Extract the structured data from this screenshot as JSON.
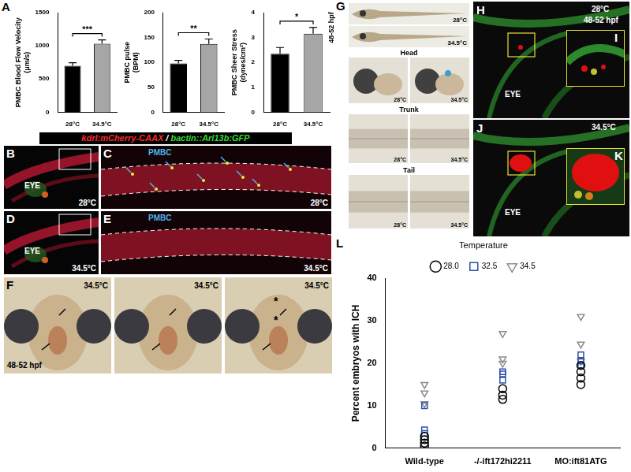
{
  "chart_data": [
    {
      "panel": "A",
      "type": "bar",
      "ylabel": [
        "PMBC Blood Flow Velocity",
        "(μm/s)"
      ],
      "categories": [
        "28°C",
        "34.5°C"
      ],
      "values": [
        700,
        1030
      ],
      "errors": [
        45,
        60
      ],
      "colors": [
        "#000000",
        "#a6a6a6"
      ],
      "significance": "***",
      "ylim": [
        0,
        1500
      ],
      "yticks": [
        0,
        500,
        1000,
        1500
      ],
      "grid": false
    },
    {
      "type": "bar",
      "ylabel": [
        "PMBC pulse",
        "(BPM)"
      ],
      "categories": [
        "28°C",
        "34.5°C"
      ],
      "values": [
        98,
        137
      ],
      "errors": [
        6,
        10
      ],
      "colors": [
        "#000000",
        "#a6a6a6"
      ],
      "significance": "**",
      "ylim": [
        0,
        200
      ],
      "yticks": [
        0,
        50,
        100,
        150,
        200
      ],
      "grid": false
    },
    {
      "type": "bar",
      "ylabel": [
        "PMBC Sheer Stress",
        "(dynes/cm²)"
      ],
      "categories": [
        "28°C",
        "34.5°C"
      ],
      "values": [
        2.35,
        3.15
      ],
      "errors": [
        0.25,
        0.25
      ],
      "colors": [
        "#000000",
        "#a6a6a6"
      ],
      "significance": "*",
      "ylim": [
        0,
        4
      ],
      "yticks": [
        0,
        1,
        2,
        3,
        4
      ],
      "grid": false
    },
    {
      "panel": "L",
      "type": "scatter",
      "ylabel": "Percent embryos with ICH",
      "categories": [
        "Wild-type",
        "-/-ift172hi2211",
        "MO:ift81ATG"
      ],
      "legend": "top",
      "legend_title": "Temperature",
      "grid": false,
      "ylim": [
        0,
        40
      ],
      "yticks": [
        0,
        10,
        20,
        30,
        40
      ],
      "series": [
        {
          "name": "28.0",
          "color": "#000000",
          "marker": "circle",
          "values": [
            [
              0.5,
              1.2,
              2,
              2.8
            ],
            [
              11.5,
              12.5,
              14
            ],
            [
              15,
              16.5,
              18,
              19.5
            ]
          ]
        },
        {
          "name": "32.5",
          "color": "#2e4fa8",
          "marker": "square",
          "values": [
            [
              3.5,
              4.3,
              10
            ],
            [
              16,
              17.5,
              18
            ],
            [
              19.5,
              20.5,
              22
            ]
          ]
        },
        {
          "name": "34.5",
          "color": "#8c8c8c",
          "marker": "triangle_down",
          "values": [
            [
              10.5,
              13,
              15
            ],
            [
              20,
              21,
              27
            ],
            [
              20.5,
              24.5,
              31
            ]
          ]
        }
      ]
    }
  ],
  "header": [
    {
      "text": "kdrl:mCherry-CAAX",
      "color": "#ff2a2a"
    },
    {
      "text": " / ",
      "color": "#ffffff"
    },
    {
      "text": "bactin::Arl13b:GFP",
      "color": "#33dd33"
    }
  ],
  "panels": [
    {
      "letter": "B",
      "eye": "EYE",
      "temperature": "28°C"
    },
    {
      "letter": "C",
      "vessel": "PMBC",
      "temperature": "28°C"
    },
    {
      "letter": "D",
      "eye": "EYE",
      "temperature": "34.5°C"
    },
    {
      "letter": "E",
      "vessel": "PMBC",
      "temperature": "34.5°C"
    },
    {
      "letter": "F",
      "stage": "48-52 hpf",
      "temperatures": [
        "34.5°C",
        "34.5°C",
        "34.5°C"
      ],
      "marks": [
        "*",
        "*"
      ]
    },
    {
      "letter": "G",
      "stage": "48-52 hpf",
      "temperatures": [
        "28°C",
        "34.5°C"
      ],
      "regions": [
        "Head",
        "Trunk",
        "Tail"
      ]
    },
    {
      "letter": "H",
      "temperature": "28°C",
      "stage": "48-52 hpf",
      "eye": "EYE"
    },
    {
      "letter": "I"
    },
    {
      "letter": "J",
      "temperature": "34.5°C",
      "eye": "EYE"
    },
    {
      "letter": "K"
    }
  ]
}
